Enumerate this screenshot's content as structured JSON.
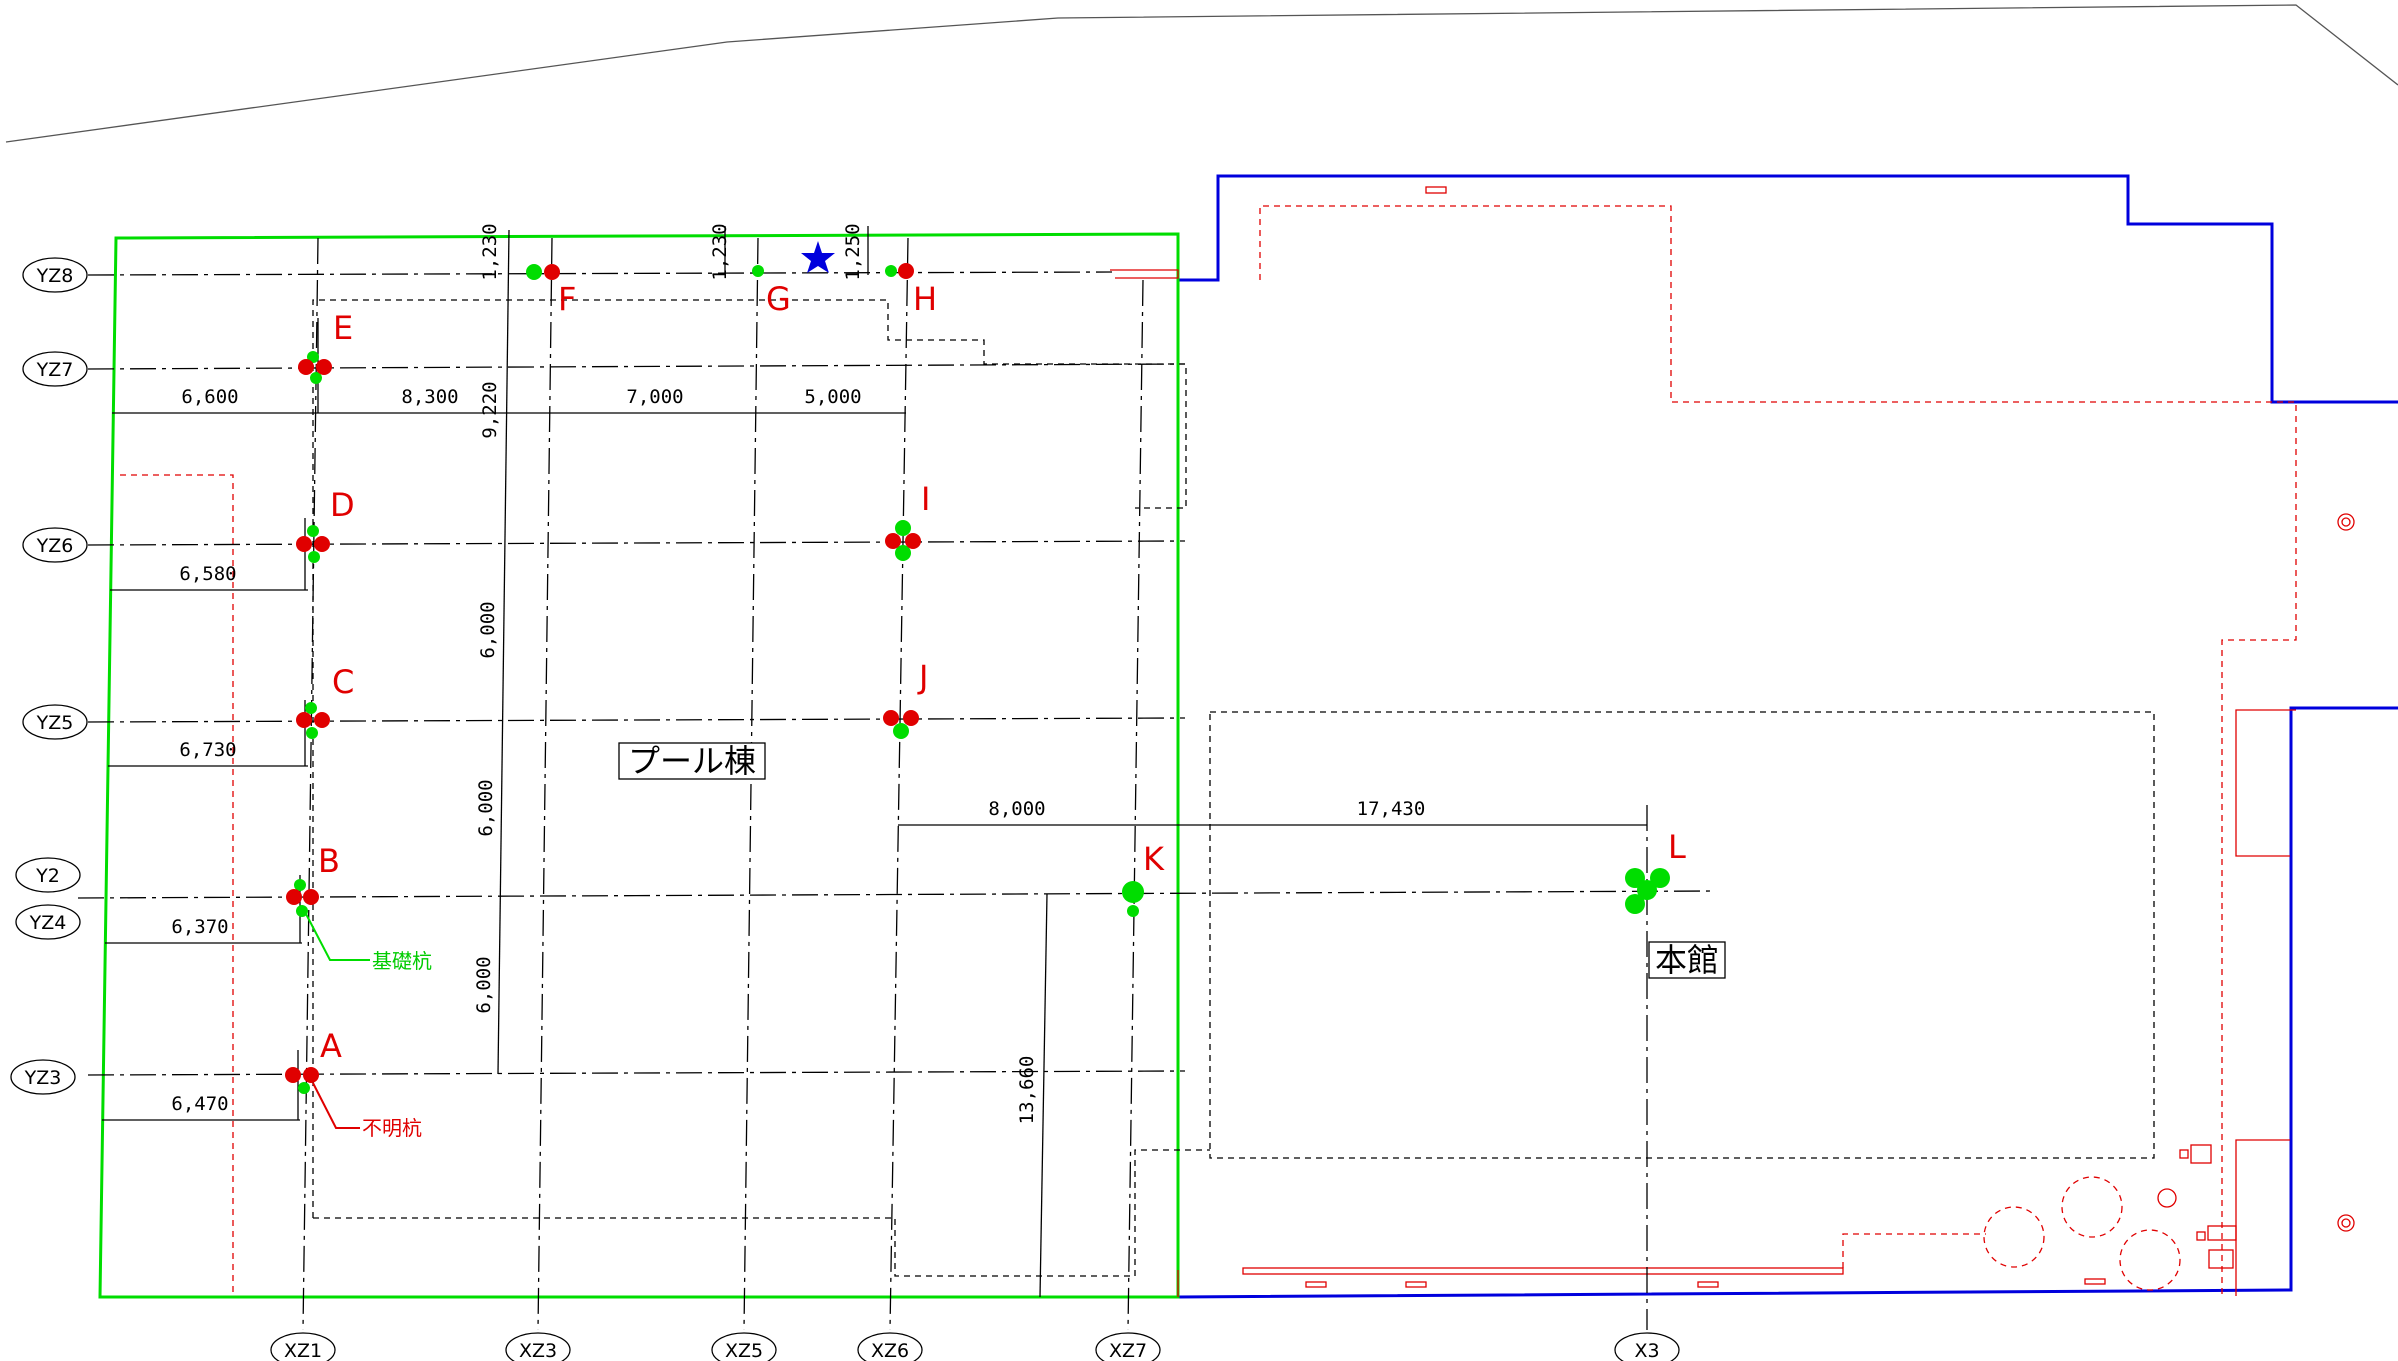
{
  "grid": {
    "x_axes": [
      "XZ1",
      "XZ3",
      "XZ5",
      "XZ6",
      "XZ7",
      "X3"
    ],
    "y_axes": [
      "YZ8",
      "YZ7",
      "YZ6",
      "YZ5",
      "Y2",
      "YZ4",
      "YZ3"
    ]
  },
  "dimensions": {
    "yz7_row": [
      "6,600",
      "8,300",
      "7,000",
      "5,000"
    ],
    "yz6": "6,580",
    "yz5": "6,730",
    "yz4": "6,370",
    "yz3": "6,470",
    "k_row": [
      "8,000",
      "17,430"
    ],
    "vertical_left": [
      "9,220",
      "6,000",
      "6,000",
      "6,000"
    ],
    "top_offsets": [
      "1,230",
      "1,230",
      "1,250"
    ],
    "xz7_depth": "13,660"
  },
  "piles": [
    "A",
    "B",
    "C",
    "D",
    "E",
    "F",
    "G",
    "H",
    "I",
    "J",
    "K",
    "L"
  ],
  "buildings": {
    "pool": "プール棟",
    "main": "本館"
  },
  "legend": {
    "foundation_pile": "基礎杭",
    "unknown_pile": "不明杭"
  },
  "colors": {
    "foundation_pile": "#00dd00",
    "unknown_pile": "#e00000",
    "site_boundary": "#00dd00",
    "adjacent_boundary": "#0000dd",
    "marker_star": "#0000dd"
  }
}
